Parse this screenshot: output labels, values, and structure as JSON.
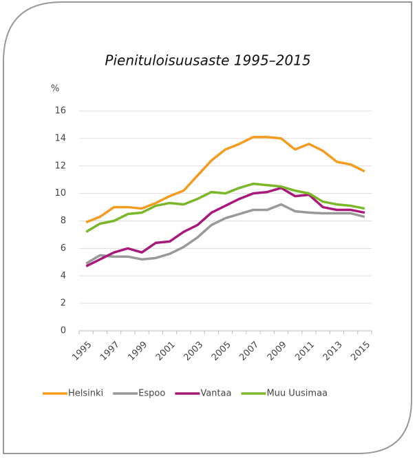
{
  "chart_data": {
    "type": "line",
    "title": "Pienituloisuusaste 1995–2015",
    "y_label": "%",
    "categories": [
      "1995",
      null,
      "1997",
      null,
      "1999",
      null,
      "2001",
      null,
      "2003",
      null,
      "2005",
      null,
      "2007",
      null,
      "2009",
      null,
      "2011",
      null,
      "2013",
      null,
      "2015"
    ],
    "series": [
      {
        "name": "Helsinki",
        "color": "#f39c1f",
        "values": [
          7.9,
          8.3,
          9.0,
          9.0,
          8.9,
          9.3,
          9.8,
          10.2,
          11.3,
          12.4,
          13.2,
          13.6,
          14.1,
          14.1,
          14.0,
          13.2,
          13.6,
          13.1,
          12.3,
          12.1,
          11.6
        ]
      },
      {
        "name": "Espoo",
        "color": "#999999",
        "values": [
          4.9,
          5.5,
          5.4,
          5.4,
          5.2,
          5.3,
          5.6,
          6.1,
          6.8,
          7.7,
          8.2,
          8.5,
          8.8,
          8.8,
          9.2,
          8.7,
          8.6,
          8.55,
          8.55,
          8.55,
          8.3
        ]
      },
      {
        "name": "Vantaa",
        "color": "#a8197a",
        "values": [
          4.7,
          5.2,
          5.7,
          6.0,
          5.7,
          6.4,
          6.5,
          7.2,
          7.7,
          8.6,
          9.1,
          9.6,
          10.0,
          10.1,
          10.4,
          9.8,
          9.9,
          9.0,
          8.8,
          8.8,
          8.6
        ]
      },
      {
        "name": "Muu Uusimaa",
        "color": "#7ab829",
        "values": [
          7.2,
          7.8,
          8.0,
          8.5,
          8.6,
          9.1,
          9.3,
          9.2,
          9.6,
          10.1,
          10.0,
          10.4,
          10.7,
          10.6,
          10.5,
          10.2,
          10.0,
          9.4,
          9.2,
          9.1,
          8.9
        ]
      }
    ],
    "ylim": [
      0,
      16
    ],
    "yticks": [
      0,
      2,
      4,
      6,
      8,
      10,
      12,
      14,
      16
    ],
    "grid": true,
    "legend": "bottom"
  }
}
